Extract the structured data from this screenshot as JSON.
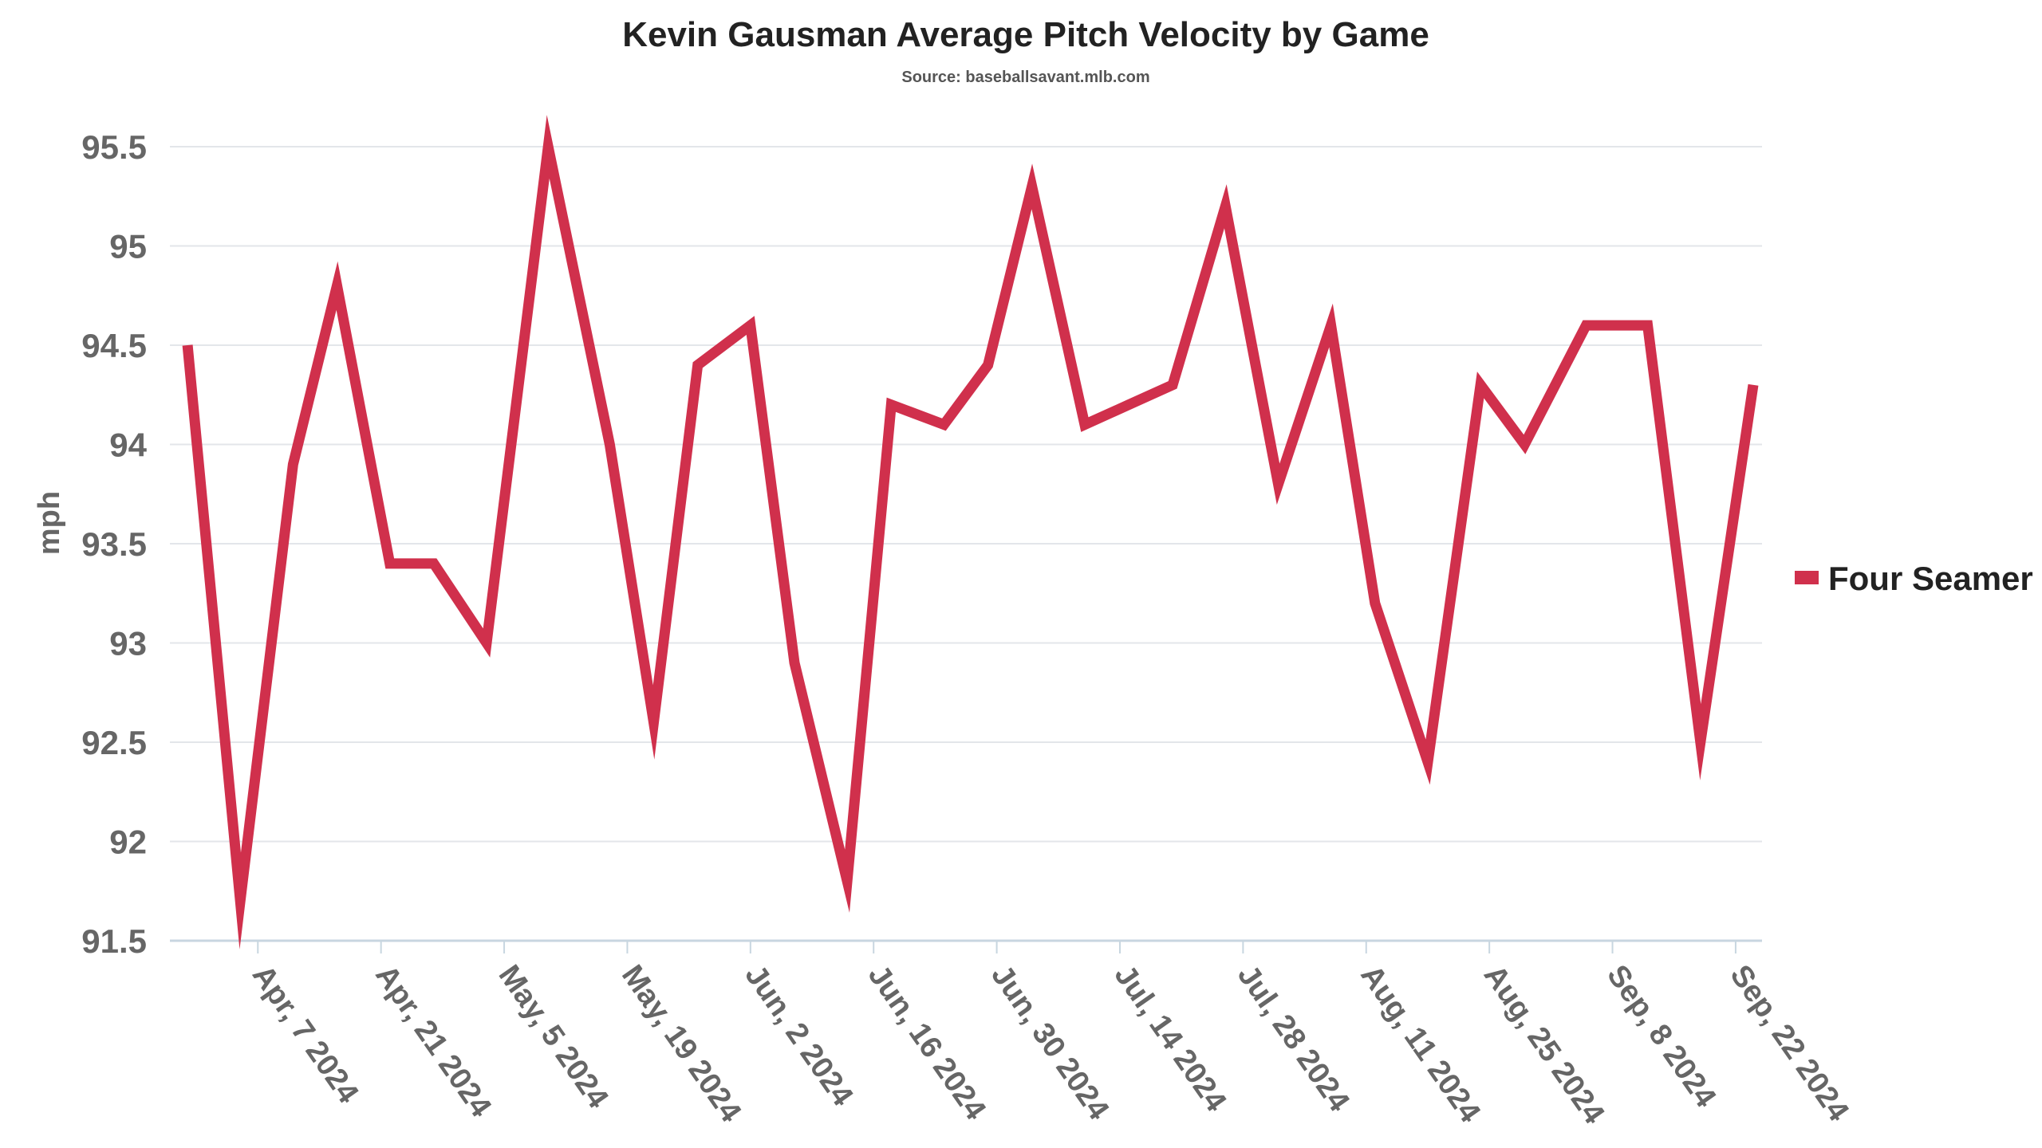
{
  "chart_data": {
    "type": "line",
    "title": "Kevin Gausman Average Pitch Velocity by Game",
    "subtitle": "Source: baseballsavant.mlb.com",
    "xlabel": "",
    "ylabel": "mph",
    "ylim": [
      91.5,
      95.5
    ],
    "yticks": [
      "91.5",
      "92",
      "92.5",
      "93",
      "93.5",
      "94",
      "94.5",
      "95",
      "95.5"
    ],
    "xticks": [
      "Apr, 7 2024",
      "Apr, 21 2024",
      "May, 5 2024",
      "May, 19 2024",
      "Jun, 2 2024",
      "Jun, 16 2024",
      "Jun, 30 2024",
      "Jul, 14 2024",
      "Jul, 28 2024",
      "Aug, 11 2024",
      "Aug, 25 2024",
      "Sep, 8 2024",
      "Sep, 22 2024"
    ],
    "xtick_dates": [
      "2024-04-07",
      "2024-04-21",
      "2024-05-05",
      "2024-05-19",
      "2024-06-02",
      "2024-06-16",
      "2024-06-30",
      "2024-07-14",
      "2024-07-28",
      "2024-08-11",
      "2024-08-25",
      "2024-09-08",
      "2024-09-22"
    ],
    "xlim": [
      "2024-03-28",
      "2024-09-25"
    ],
    "grid": true,
    "legend_position": "right",
    "series": [
      {
        "name": "Four Seamer",
        "color": "#d0304c",
        "x": [
          "2024-03-30",
          "2024-04-05",
          "2024-04-11",
          "2024-04-16",
          "2024-04-22",
          "2024-04-27",
          "2024-05-03",
          "2024-05-10",
          "2024-05-17",
          "2024-05-22",
          "2024-05-27",
          "2024-06-02",
          "2024-06-07",
          "2024-06-13",
          "2024-06-18",
          "2024-06-24",
          "2024-06-29",
          "2024-07-04",
          "2024-07-10",
          "2024-07-15",
          "2024-07-20",
          "2024-07-26",
          "2024-08-01",
          "2024-08-07",
          "2024-08-12",
          "2024-08-18",
          "2024-08-24",
          "2024-08-29",
          "2024-09-05",
          "2024-09-08",
          "2024-09-12",
          "2024-09-18",
          "2024-09-24"
        ],
        "values": [
          94.5,
          91.7,
          93.9,
          94.8,
          93.4,
          93.4,
          93.0,
          95.5,
          94.0,
          92.6,
          94.4,
          94.6,
          92.9,
          91.8,
          94.2,
          94.1,
          94.4,
          95.3,
          94.1,
          94.2,
          94.3,
          95.2,
          93.8,
          94.6,
          93.2,
          92.4,
          94.3,
          94.0,
          94.6,
          94.6,
          94.6,
          92.5,
          94.3
        ]
      }
    ]
  }
}
